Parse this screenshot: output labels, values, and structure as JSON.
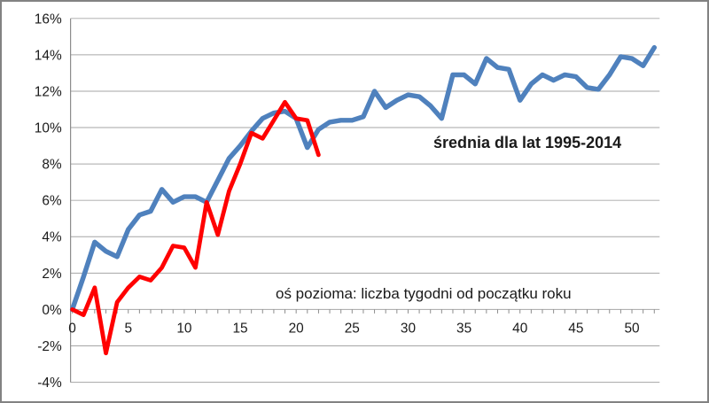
{
  "annotation_series": "średnia dla lat 1995-2014",
  "annotation_axis_note": "oś pozioma: liczba tygodni od początku roku",
  "chart_data": {
    "type": "line",
    "title": "",
    "xlabel": "oś pozioma: liczba tygodni od początku roku",
    "ylabel": "",
    "annotation": "średnia dla lat 1995-2014",
    "grid": true,
    "legend_position": "none",
    "xlim": [
      0,
      52.4
    ],
    "ylim": [
      -4,
      16
    ],
    "x": [
      0,
      1,
      2,
      3,
      4,
      5,
      6,
      7,
      8,
      9,
      10,
      11,
      12,
      13,
      14,
      15,
      16,
      17,
      18,
      19,
      20,
      21,
      22,
      23,
      24,
      25,
      26,
      27,
      28,
      29,
      30,
      31,
      32,
      33,
      34,
      35,
      36,
      37,
      38,
      39,
      40,
      41,
      42,
      43,
      44,
      45,
      46,
      47,
      48,
      49,
      50,
      51,
      52
    ],
    "series": [
      {
        "name": "średnia dla lat 1995-2014",
        "color": "#4F81BD",
        "values_pct": [
          0.0,
          1.8,
          3.7,
          3.2,
          2.9,
          4.4,
          5.2,
          5.4,
          6.6,
          5.9,
          6.2,
          6.2,
          5.9,
          7.1,
          8.3,
          9.0,
          9.8,
          10.5,
          10.8,
          10.9,
          10.5,
          8.9,
          9.9,
          10.3,
          10.4,
          10.4,
          10.6,
          12.0,
          11.1,
          11.5,
          11.8,
          11.7,
          11.2,
          10.5,
          12.9,
          12.9,
          12.4,
          13.8,
          13.3,
          13.2,
          11.5,
          12.4,
          12.9,
          12.6,
          12.9,
          12.8,
          12.2,
          12.1,
          12.9,
          13.9,
          13.8,
          13.4,
          14.4
        ]
      },
      {
        "name": "",
        "color": "#FF0000",
        "values_pct": [
          0.0,
          -0.3,
          1.2,
          -2.4,
          0.4,
          1.2,
          1.8,
          1.6,
          2.3,
          3.5,
          3.4,
          2.3,
          5.9,
          4.1,
          6.5,
          8.0,
          9.7,
          9.4,
          10.4,
          11.4,
          10.5,
          10.4,
          8.5
        ]
      }
    ],
    "y_axis": {
      "tick_values": [
        16,
        14,
        12,
        10,
        8,
        6,
        4,
        2,
        0,
        -2,
        -4
      ],
      "tick_labels": [
        "16%",
        "14%",
        "12%",
        "10%",
        "8%",
        "6%",
        "4%",
        "2%",
        "0%",
        "-2%",
        "-4%"
      ]
    },
    "x_axis": {
      "tick_values": [
        0,
        5,
        10,
        15,
        20,
        25,
        30,
        35,
        40,
        45,
        50
      ],
      "tick_labels": [
        "0",
        "5",
        "10",
        "15",
        "20",
        "25",
        "30",
        "35",
        "40",
        "45",
        "50"
      ],
      "minor_tick_step": 1,
      "minor_tick_max": 52
    },
    "colors": {
      "series_average": "#4F81BD",
      "series_current": "#FF0000",
      "gridline": "#A6A6A6",
      "axis_line": "#8C8C8C",
      "tick_label": "#1a1a1a"
    }
  }
}
